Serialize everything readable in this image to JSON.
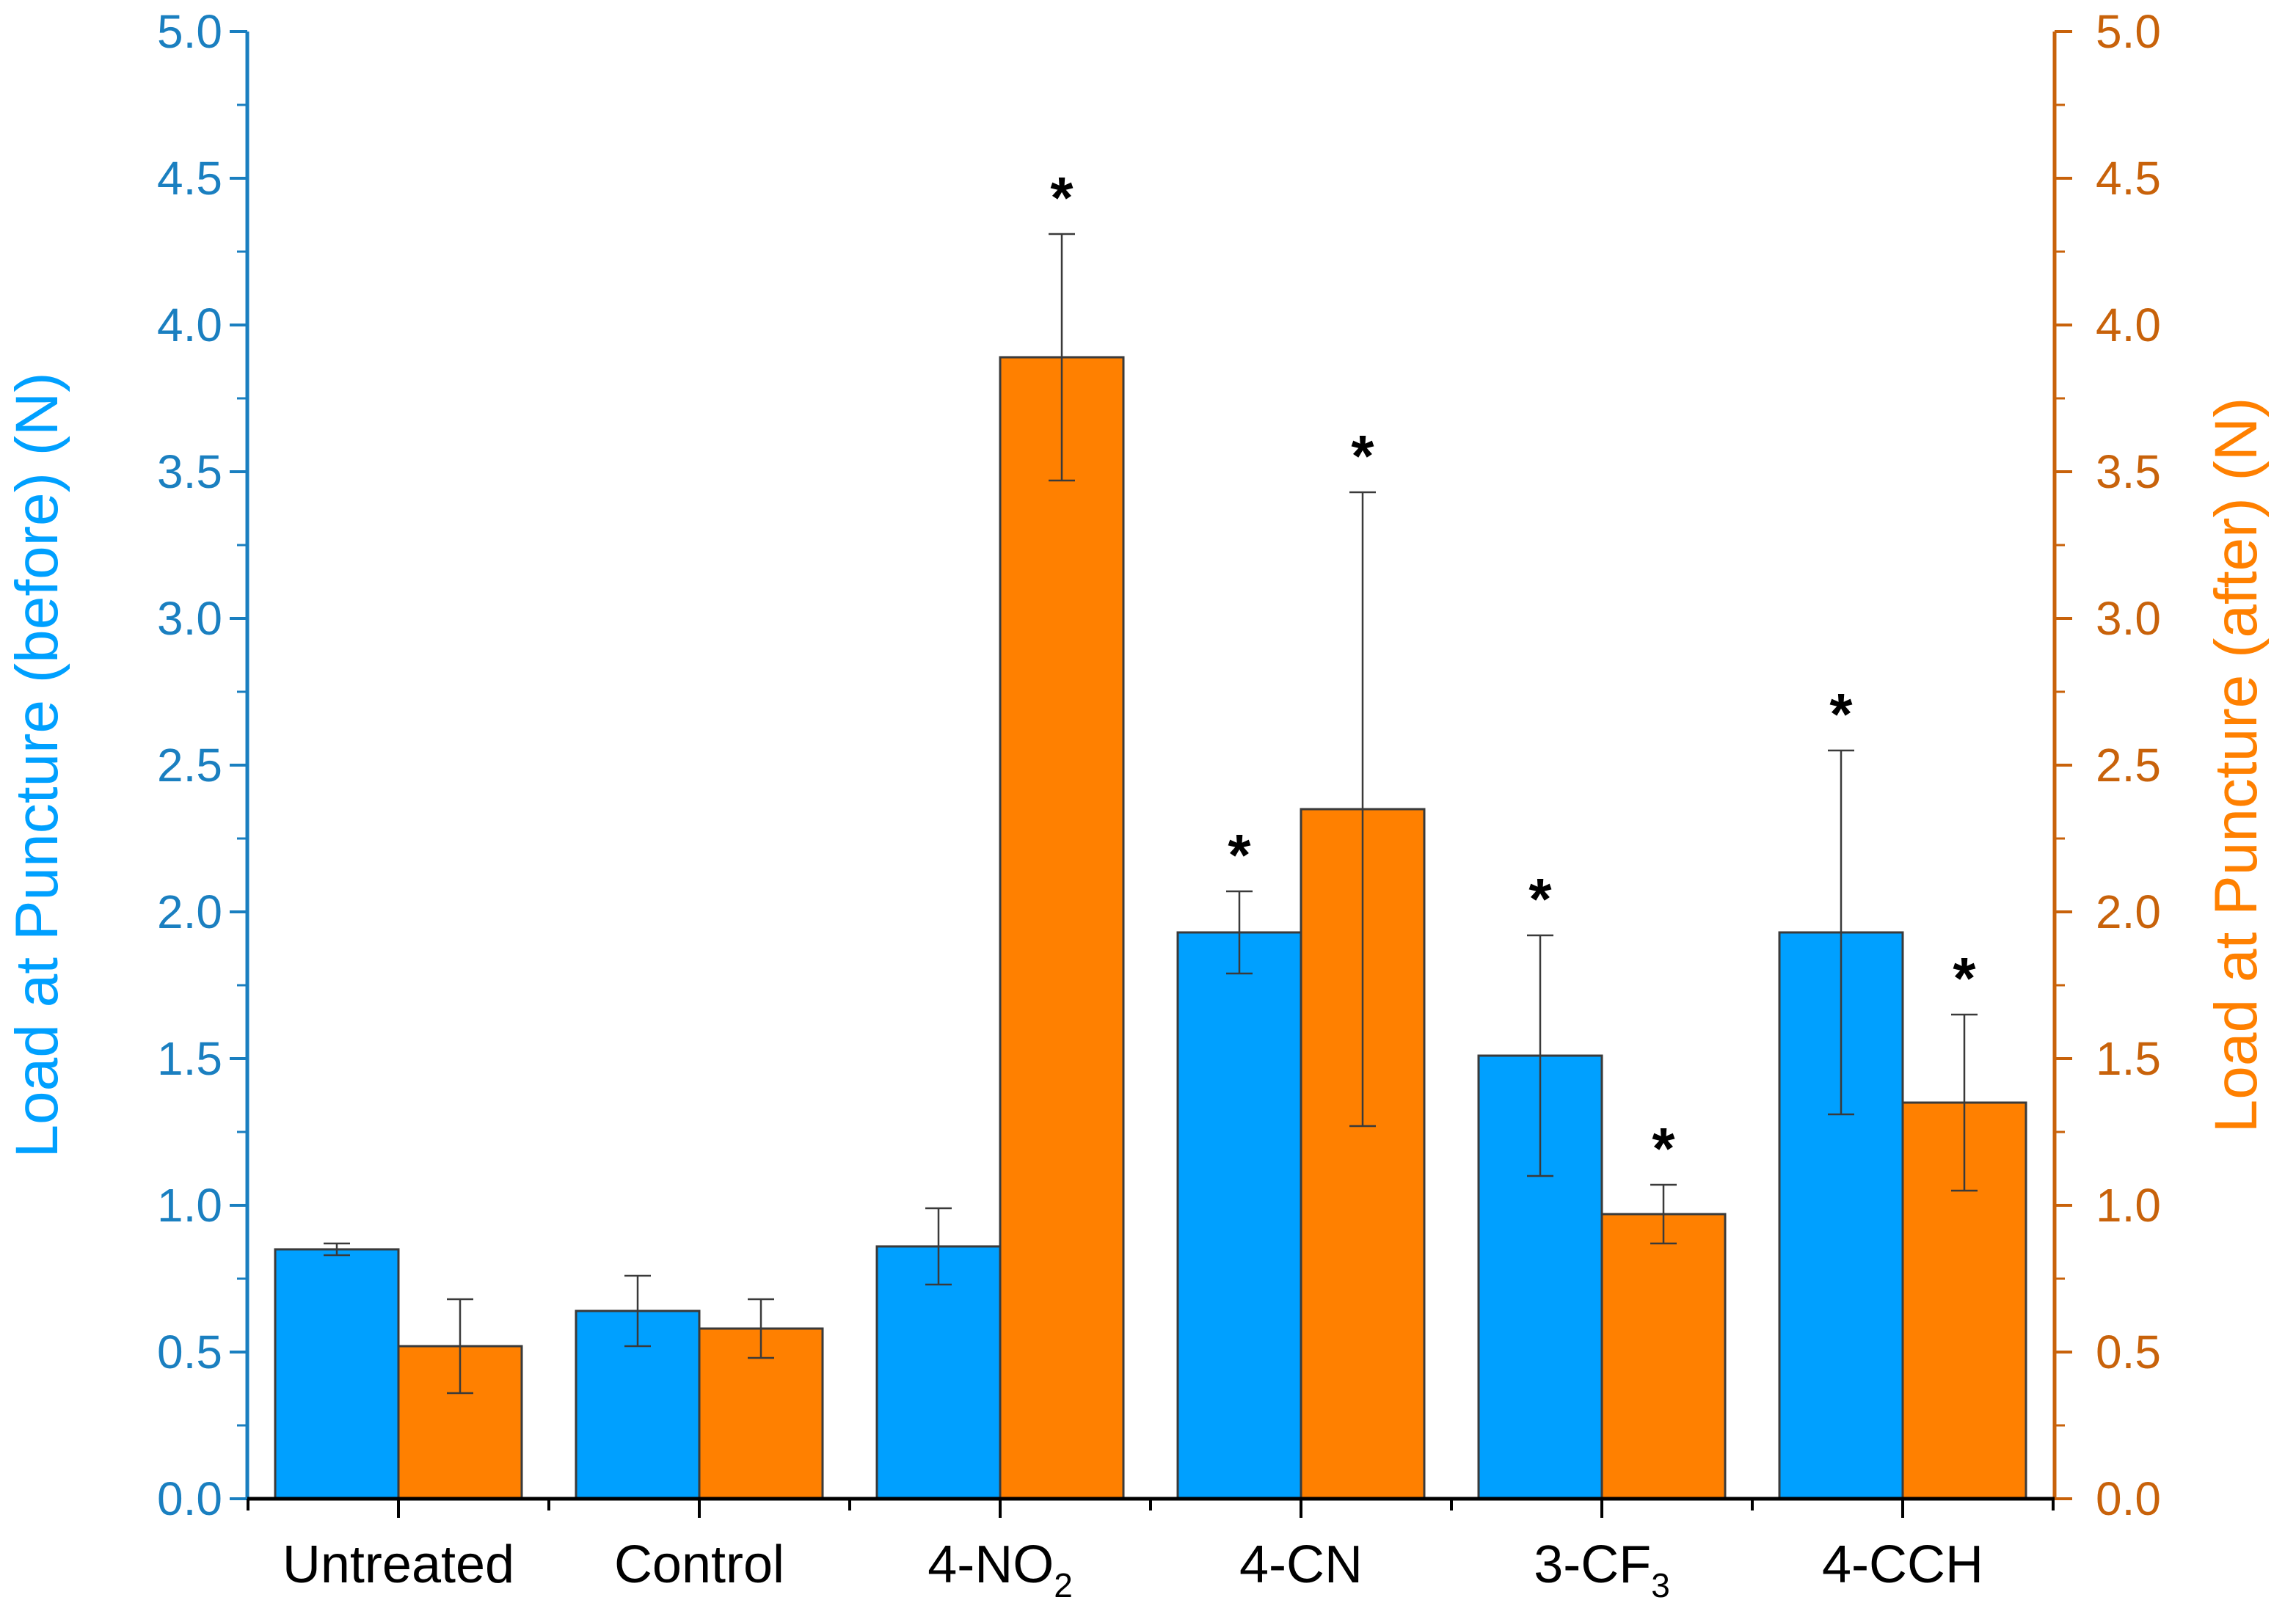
{
  "chart_data": {
    "type": "bar",
    "categories": [
      {
        "main": "Untreated",
        "sub": ""
      },
      {
        "main": "Control",
        "sub": ""
      },
      {
        "main": "4-NO",
        "sub": "2"
      },
      {
        "main": "4-CN",
        "sub": ""
      },
      {
        "main": "3-CF",
        "sub": "3"
      },
      {
        "main": "4-CCH",
        "sub": ""
      }
    ],
    "series": [
      {
        "name": "before",
        "axis": "left",
        "color": "#00a0ff",
        "values": [
          0.85,
          0.64,
          0.86,
          1.93,
          1.51,
          1.93
        ],
        "error_low": [
          0.83,
          0.52,
          0.73,
          1.79,
          1.1,
          1.31
        ],
        "error_high": [
          0.87,
          0.76,
          0.99,
          2.07,
          1.92,
          2.55
        ],
        "significant": [
          false,
          false,
          false,
          true,
          true,
          true
        ]
      },
      {
        "name": "after",
        "axis": "right",
        "color": "#ff8000",
        "values": [
          0.52,
          0.58,
          3.89,
          2.35,
          0.97,
          1.35
        ],
        "error_low": [
          0.36,
          0.48,
          3.47,
          1.27,
          0.87,
          1.05
        ],
        "error_high": [
          0.68,
          0.68,
          4.31,
          3.43,
          1.07,
          1.65
        ],
        "significant": [
          false,
          false,
          true,
          true,
          true,
          true
        ]
      }
    ],
    "significance_marker": "*",
    "left_axis": {
      "label": "Load at Puncture (before) (N)",
      "color": "#1a7fc0",
      "title_color": "#00a0ff",
      "range": [
        0,
        5
      ],
      "ticks": [
        "0.0",
        "0.5",
        "1.0",
        "1.5",
        "2.0",
        "2.5",
        "3.0",
        "3.5",
        "4.0",
        "4.5",
        "5.0"
      ]
    },
    "right_axis": {
      "label": "Load at Puncture (after) (N)",
      "color": "#c8620a",
      "title_color": "#ff8000",
      "range": [
        0,
        5
      ],
      "ticks": [
        "0.0",
        "0.5",
        "1.0",
        "1.5",
        "2.0",
        "2.5",
        "3.0",
        "3.5",
        "4.0",
        "4.5",
        "5.0"
      ]
    },
    "grid": false,
    "legend": "none"
  }
}
